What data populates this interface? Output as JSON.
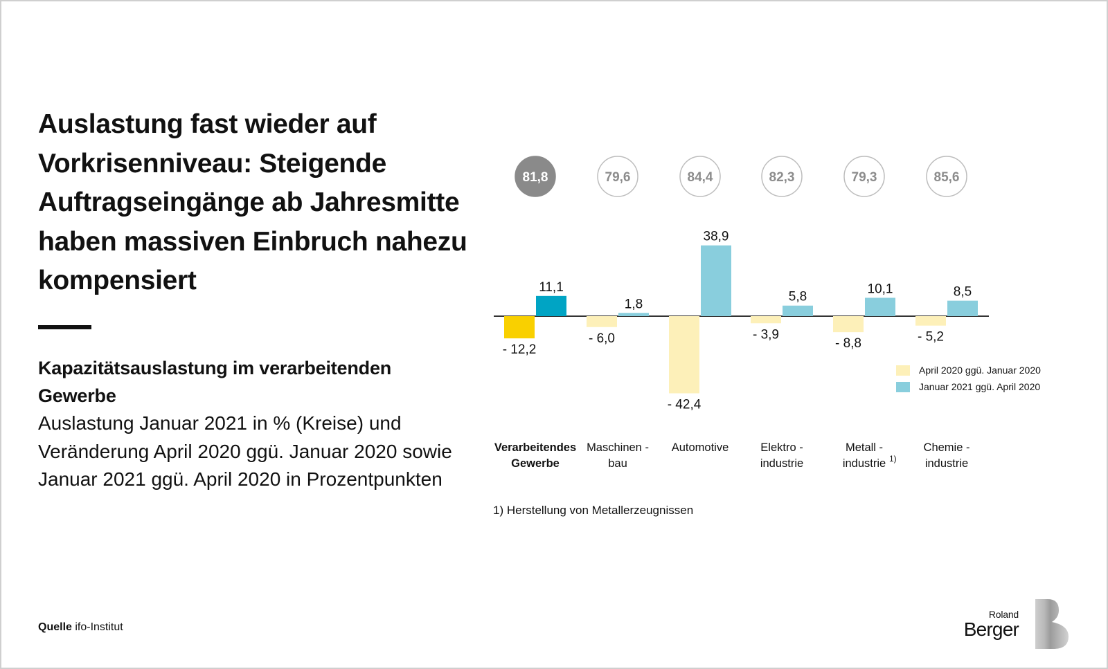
{
  "title": "Auslastung fast wieder auf Vorkrisenniveau: Steigende Auftragseingänge ab Jahresmitte haben massiven Einbruch nahezu kompensiert",
  "subtitle": "Kapazitätsauslastung im verarbeitenden Gewerbe",
  "description": "Auslastung Januar 2021 in % (Kreise) und Veränderung April 2020 ggü. Januar 2020 sowie Januar 2021 ggü. April 2020 in Prozentpunkten",
  "source": {
    "label": "Quelle",
    "text": "ifo-Institut"
  },
  "footnote": "1) Herstellung von Metallerzeugnissen",
  "logo": {
    "line1": "Roland",
    "line2": "Berger"
  },
  "colors": {
    "april_highlight": "#F9D000",
    "april": "#FDF0B9",
    "january_highlight": "#00A4C4",
    "january": "#89CEDD",
    "circle_highlight": "#8A8A8A",
    "circle_border": "#BDBDBD",
    "circle_text": "#8C8C8C"
  },
  "chart_data": {
    "type": "bar",
    "categories": [
      {
        "lines": [
          "Verarbeitendes",
          "Gewerbe"
        ],
        "bold": true,
        "superscript": ""
      },
      {
        "lines": [
          "Maschinen -",
          "bau"
        ],
        "bold": false,
        "superscript": ""
      },
      {
        "lines": [
          "Automotive"
        ],
        "bold": false,
        "superscript": ""
      },
      {
        "lines": [
          "Elektro -",
          "industrie"
        ],
        "bold": false,
        "superscript": ""
      },
      {
        "lines": [
          "Metall -",
          "industrie"
        ],
        "bold": false,
        "superscript": "1)"
      },
      {
        "lines": [
          "Chemie -",
          "industrie"
        ],
        "bold": false,
        "superscript": ""
      }
    ],
    "series": [
      {
        "name": "April 2020 ggü. Januar 2020",
        "values": [
          -12.2,
          -6.0,
          -42.4,
          -3.9,
          -8.8,
          -5.2
        ],
        "labels": [
          "- 12,2",
          "- 6,0",
          "- 42,4",
          "- 3,9",
          "- 8,8",
          "- 5,2"
        ]
      },
      {
        "name": "Januar 2021 ggü. April 2020",
        "values": [
          11.1,
          1.8,
          38.9,
          5.8,
          10.1,
          8.5
        ],
        "labels": [
          "11,1",
          "1,8",
          "38,9",
          "5,8",
          "10,1",
          "8,5"
        ]
      }
    ],
    "utilization": {
      "values": [
        81.8,
        79.6,
        84.4,
        82.3,
        79.3,
        85.6
      ],
      "labels": [
        "81,8",
        "79,6",
        "84,4",
        "82,3",
        "79,3",
        "85,6"
      ]
    },
    "highlight_index": 0,
    "legend_position": "right",
    "grid": false,
    "ylim": [
      -45,
      45
    ]
  }
}
